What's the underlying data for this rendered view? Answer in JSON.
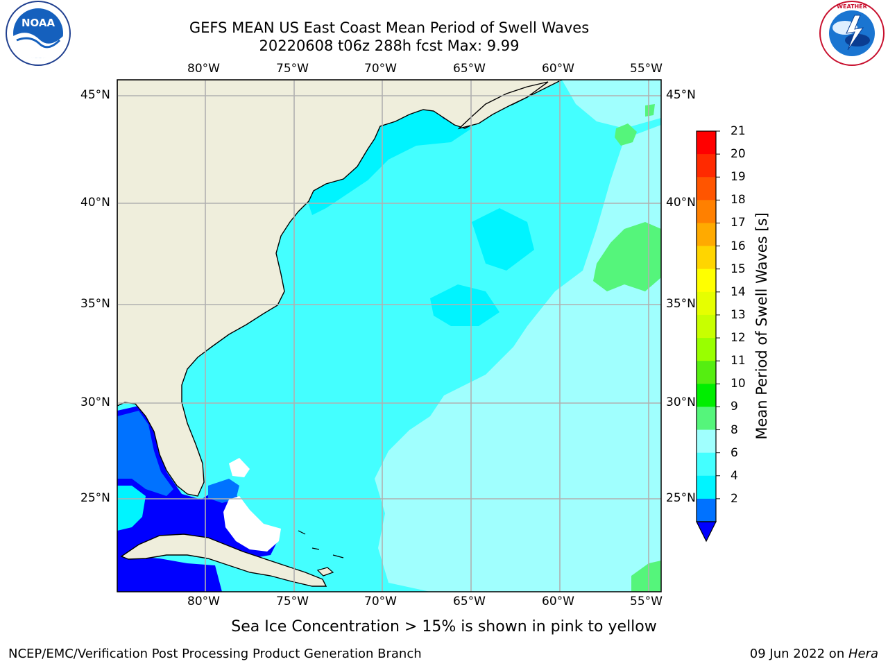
{
  "header": {
    "title_line1": "GEFS MEAN US East Coast Mean Period of Swell Waves",
    "title_line2": "20220608 t06z 288h fcst   Max: 9.99"
  },
  "logos": {
    "noaa": {
      "text": "NOAA",
      "ring_text": "NATIONAL OCEANIC AND ATMOSPHERIC ADMINISTRATION · U.S. DEPARTMENT OF COMMERCE"
    },
    "nws": {
      "ring_text": "NATIONAL WEATHER SERVICE"
    }
  },
  "map": {
    "lon_labels": [
      "80°W",
      "75°W",
      "70°W",
      "65°W",
      "60°W",
      "55°W"
    ],
    "lat_labels": [
      "45°N",
      "40°N",
      "35°N",
      "30°N",
      "25°N"
    ],
    "colors": {
      "land": "#efeedc",
      "ocean_main": "#44ffff",
      "ocean_light": "#a0fffe",
      "ocean_mid": "#00f4ff",
      "ocean_dark": "#0000ff",
      "ocean_blue": "#0072ff",
      "green": "#55f57b",
      "grid": "#b0b0b0"
    }
  },
  "colorbar": {
    "title": "Mean Period of Swell Waves [s]",
    "ticks": [
      "21",
      "20",
      "19",
      "18",
      "17",
      "16",
      "15",
      "14",
      "13",
      "12",
      "11",
      "10",
      "9",
      "8",
      "6",
      "4",
      "2"
    ],
    "colors": [
      "#ff0000",
      "#ff2a00",
      "#ff5500",
      "#ff8000",
      "#ffaa00",
      "#ffd500",
      "#ffff00",
      "#e6ff00",
      "#c8ff00",
      "#99ff00",
      "#55ee11",
      "#00ee00",
      "#55f57b",
      "#a0fffe",
      "#44ffff",
      "#00f4ff",
      "#0072ff"
    ],
    "under_color": "#0000ff"
  },
  "footer": {
    "note": "Sea Ice Concentration > 15% is shown in pink to yellow",
    "credit": "NCEP/EMC/Verification Post Processing Product Generation Branch",
    "date": "09 Jun 2022 on ",
    "machine": "Hera"
  }
}
